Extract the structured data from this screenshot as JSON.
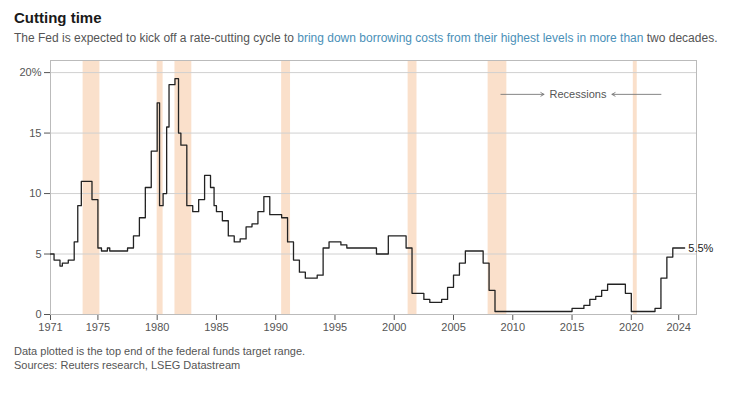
{
  "chart_data": {
    "type": "line",
    "title": "Cutting time",
    "subtitle": [
      {
        "text": "The Fed is expected to kick off a rate-cutting cycle to "
      },
      {
        "text": "bring down borrowing costs from their highest levels in more than",
        "color": "#4a90b8"
      },
      {
        "text": " two decades."
      }
    ],
    "caption": [
      "Data plotted is the top end of the federal funds target range.",
      "Sources: Reuters research, LSEG Datastream"
    ],
    "x": [
      1971.0,
      1971.3,
      1971.8,
      1972.0,
      1972.5,
      1973.0,
      1973.3,
      1973.6,
      1974.0,
      1974.5,
      1975.0,
      1975.3,
      1975.8,
      1976.0,
      1976.5,
      1977.0,
      1977.5,
      1978.0,
      1978.5,
      1979.0,
      1979.5,
      1980.0,
      1980.2,
      1980.5,
      1980.8,
      1981.0,
      1981.5,
      1981.8,
      1982.0,
      1982.5,
      1983.0,
      1983.5,
      1984.0,
      1984.5,
      1984.8,
      1985.0,
      1985.5,
      1986.0,
      1986.5,
      1987.0,
      1987.5,
      1988.0,
      1988.5,
      1989.0,
      1989.5,
      1990.0,
      1990.5,
      1991.0,
      1991.5,
      1992.0,
      1992.5,
      1993.0,
      1993.5,
      1994.0,
      1994.5,
      1995.0,
      1995.5,
      1996.0,
      1996.5,
      1997.0,
      1997.5,
      1998.0,
      1998.5,
      1999.0,
      1999.5,
      2000.0,
      2000.5,
      2001.0,
      2001.5,
      2002.0,
      2002.5,
      2003.0,
      2003.5,
      2004.0,
      2004.5,
      2005.0,
      2005.5,
      2006.0,
      2006.5,
      2007.0,
      2007.5,
      2008.0,
      2008.5,
      2009.0,
      2009.5,
      2010.0,
      2010.5,
      2011.0,
      2011.5,
      2012.0,
      2012.5,
      2013.0,
      2013.5,
      2014.0,
      2014.5,
      2015.0,
      2015.5,
      2016.0,
      2016.5,
      2017.0,
      2017.5,
      2018.0,
      2018.5,
      2019.0,
      2019.5,
      2020.0,
      2020.2,
      2020.5,
      2021.0,
      2021.5,
      2022.0,
      2022.5,
      2023.0,
      2023.5,
      2024.0,
      2024.5
    ],
    "values": [
      5.0,
      4.5,
      4.0,
      4.25,
      4.5,
      6.0,
      9.0,
      11.0,
      11.0,
      9.5,
      5.5,
      5.25,
      5.5,
      5.25,
      5.25,
      5.25,
      5.5,
      6.5,
      8.0,
      10.5,
      13.5,
      17.5,
      9.0,
      10.0,
      15.5,
      19.0,
      19.5,
      15.0,
      14.0,
      9.0,
      8.5,
      9.5,
      11.5,
      10.5,
      9.0,
      8.5,
      7.75,
      6.5,
      6.0,
      6.25,
      7.25,
      7.5,
      8.5,
      9.75,
      8.25,
      8.25,
      8.0,
      6.0,
      4.5,
      3.5,
      3.0,
      3.0,
      3.25,
      5.5,
      6.0,
      6.0,
      5.75,
      5.5,
      5.5,
      5.5,
      5.5,
      5.5,
      5.0,
      5.0,
      6.5,
      6.5,
      6.5,
      5.5,
      1.75,
      1.75,
      1.25,
      1.0,
      1.0,
      1.25,
      2.25,
      3.25,
      4.25,
      5.25,
      5.25,
      5.25,
      4.25,
      2.0,
      0.25,
      0.25,
      0.25,
      0.25,
      0.25,
      0.25,
      0.25,
      0.25,
      0.25,
      0.25,
      0.25,
      0.25,
      0.25,
      0.5,
      0.5,
      0.75,
      1.25,
      1.5,
      2.0,
      2.5,
      2.5,
      2.5,
      1.75,
      0.25,
      0.25,
      0.25,
      0.25,
      0.25,
      0.5,
      3.0,
      4.75,
      5.5,
      5.5,
      5.5
    ],
    "line_style": "step",
    "color": "#222222",
    "recessions": {
      "color": "#f5c6a0",
      "ranges": [
        [
          1973.75,
          1975.17
        ],
        [
          1980.0,
          1980.5
        ],
        [
          1981.5,
          1982.92
        ],
        [
          1990.5,
          1991.25
        ],
        [
          2001.17,
          2001.92
        ],
        [
          2007.92,
          2009.5
        ],
        [
          2020.17,
          2020.5
        ]
      ]
    },
    "annotations": [
      {
        "text": "Recessions",
        "x": 2015.5,
        "y": 18.2,
        "arrows_from": [
          2009.0,
          2022.5
        ]
      },
      {
        "text": "5.5%",
        "x": 2024.3,
        "y": 5.5
      }
    ],
    "xlim": [
      1971,
      2025.5
    ],
    "xticks": [
      1971,
      1975,
      1980,
      1985,
      1990,
      1995,
      2000,
      2005,
      2010,
      2015,
      2020,
      2024
    ],
    "ylim": [
      0,
      21
    ],
    "yticks": [
      0,
      5,
      10,
      15,
      {
        "value": 20,
        "label": "20%"
      }
    ],
    "grid": true
  }
}
